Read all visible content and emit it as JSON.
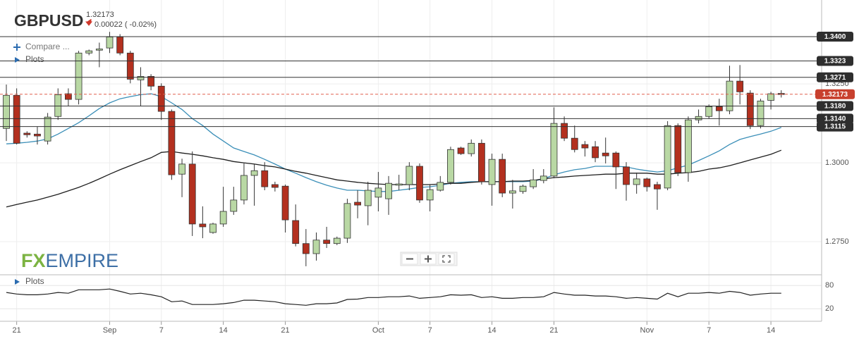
{
  "chart_data": [
    {
      "type": "candlestick",
      "title": "GBPUSD",
      "last_price": {
        "value": 1.32173,
        "label": "1.32173"
      },
      "change": "0.00022 ( -0.02%)",
      "categories": [
        null,
        "21",
        null,
        null,
        null,
        null,
        null,
        null,
        null,
        null,
        "Sep",
        null,
        null,
        null,
        null,
        "7",
        null,
        null,
        null,
        null,
        null,
        "14",
        null,
        null,
        null,
        null,
        null,
        "21",
        null,
        null,
        null,
        null,
        null,
        null,
        null,
        null,
        "Oct",
        null,
        null,
        null,
        null,
        "7",
        null,
        null,
        null,
        null,
        null,
        "14",
        null,
        null,
        null,
        null,
        null,
        "21",
        null,
        null,
        null,
        null,
        null,
        null,
        null,
        null,
        "Nov",
        null,
        null,
        null,
        null,
        null,
        "7",
        null,
        null,
        null,
        null,
        null,
        "14",
        null
      ],
      "ohlc": [
        [
          1.3109,
          1.3248,
          1.3069,
          1.3214
        ],
        [
          1.3214,
          1.3236,
          1.3058,
          1.3062
        ],
        [
          1.3094,
          1.31,
          1.308,
          1.3089
        ],
        [
          1.3091,
          1.3114,
          1.3058,
          1.3085
        ],
        [
          1.3069,
          1.3158,
          1.3058,
          1.3145
        ],
        [
          1.3147,
          1.3236,
          1.3136,
          1.3216
        ],
        [
          1.3219,
          1.3236,
          1.3181,
          1.3201
        ],
        [
          1.3201,
          1.3355,
          1.3185,
          1.3348
        ],
        [
          1.3348,
          1.3359,
          1.3341,
          1.3355
        ],
        [
          1.3357,
          1.3381,
          1.3303,
          1.3361
        ],
        [
          1.3364,
          1.3415,
          1.3348,
          1.3399
        ],
        [
          1.3399,
          1.3408,
          1.3341,
          1.3348
        ],
        [
          1.3348,
          1.3355,
          1.3252,
          1.3265
        ],
        [
          1.3263,
          1.3303,
          1.3181,
          1.3274
        ],
        [
          1.3274,
          1.3281,
          1.323,
          1.3243
        ],
        [
          1.3243,
          1.3252,
          1.3136,
          1.3163
        ],
        [
          1.3163,
          1.3169,
          1.2946,
          1.2962
        ],
        [
          1.2964,
          1.3013,
          1.2891,
          1.2996
        ],
        [
          1.2996,
          1.3036,
          1.2768,
          1.2806
        ],
        [
          1.2806,
          1.2862,
          1.2761,
          1.2797
        ],
        [
          1.2779,
          1.281,
          1.2775,
          1.2806
        ],
        [
          1.2806,
          1.2924,
          1.2797,
          1.2846
        ],
        [
          1.2846,
          1.2924,
          1.2835,
          1.2882
        ],
        [
          1.2882,
          1.2998,
          1.2868,
          1.296
        ],
        [
          1.296,
          1.2996,
          1.2864,
          1.2975
        ],
        [
          1.2975,
          1.3002,
          1.2913,
          1.2924
        ],
        [
          1.2931,
          1.294,
          1.2909,
          1.2922
        ],
        [
          1.2926,
          1.2931,
          1.2779,
          1.2819
        ],
        [
          1.2817,
          1.2868,
          1.2735,
          1.2744
        ],
        [
          1.2744,
          1.279,
          1.2672,
          1.2712
        ],
        [
          1.2712,
          1.2779,
          1.269,
          1.2755
        ],
        [
          1.2755,
          1.2797,
          1.273,
          1.2744
        ],
        [
          1.2744,
          1.2766,
          1.2739,
          1.2761
        ],
        [
          1.2761,
          1.2886,
          1.2746,
          1.2871
        ],
        [
          1.2875,
          1.2913,
          1.2824,
          1.2866
        ],
        [
          1.2864,
          1.294,
          1.2802,
          1.2913
        ],
        [
          1.2891,
          1.2971,
          1.2846,
          1.292
        ],
        [
          1.2886,
          1.2958,
          1.2835,
          1.2935
        ],
        [
          1.2929,
          1.2962,
          1.2913,
          1.2933
        ],
        [
          1.2931,
          1.3002,
          1.2913,
          1.2989
        ],
        [
          1.2989,
          1.2998,
          1.2873,
          1.2882
        ],
        [
          1.2882,
          1.2931,
          1.2846,
          1.2915
        ],
        [
          1.2913,
          1.2958,
          1.2909,
          1.2938
        ],
        [
          1.2938,
          1.3051,
          1.2931,
          1.3042
        ],
        [
          1.3047,
          1.3051,
          1.3025,
          1.3029
        ],
        [
          1.3029,
          1.3074,
          1.302,
          1.3062
        ],
        [
          1.3062,
          1.3074,
          1.2931,
          1.294
        ],
        [
          1.2931,
          1.3029,
          1.2864,
          1.3011
        ],
        [
          1.3011,
          1.3029,
          1.2891,
          1.2904
        ],
        [
          1.2904,
          1.2946,
          1.2855,
          1.2911
        ],
        [
          1.2909,
          1.2931,
          1.2902,
          1.2926
        ],
        [
          1.2924,
          1.298,
          1.2917,
          1.2946
        ],
        [
          1.2944,
          1.298,
          1.2935,
          1.2958
        ],
        [
          1.2958,
          1.3176,
          1.2951,
          1.3125
        ],
        [
          1.3125,
          1.3147,
          1.3069,
          1.3078
        ],
        [
          1.3078,
          1.3118,
          1.3033,
          1.3042
        ],
        [
          1.3058,
          1.3069,
          1.302,
          1.3047
        ],
        [
          1.3051,
          1.3069,
          1.3002,
          1.3016
        ],
        [
          1.3031,
          1.308,
          1.2998,
          1.3022
        ],
        [
          1.3031,
          1.3036,
          1.2917,
          1.2987
        ],
        [
          1.2987,
          1.3002,
          1.288,
          1.2931
        ],
        [
          1.2931,
          1.2969,
          1.2902,
          1.2949
        ],
        [
          1.2949,
          1.2953,
          1.2909,
          1.2924
        ],
        [
          1.2931,
          1.294,
          1.2851,
          1.2917
        ],
        [
          1.292,
          1.3132,
          1.2913,
          1.3118
        ],
        [
          1.3118,
          1.3125,
          1.2958,
          1.2969
        ],
        [
          1.2969,
          1.3147,
          1.294,
          1.3136
        ],
        [
          1.3136,
          1.3169,
          1.3125,
          1.3147
        ],
        [
          1.3147,
          1.3185,
          1.314,
          1.3178
        ],
        [
          1.3178,
          1.3203,
          1.3118,
          1.3165
        ],
        [
          1.3165,
          1.3308,
          1.3154,
          1.3259
        ],
        [
          1.3259,
          1.331,
          1.3185,
          1.3225
        ],
        [
          1.3221,
          1.323,
          1.3107,
          1.3118
        ],
        [
          1.3118,
          1.3203,
          1.3109,
          1.3196
        ],
        [
          1.3198,
          1.3225,
          1.3169,
          1.3219
        ],
        [
          1.322,
          1.323,
          1.3207,
          1.32173
        ]
      ],
      "up_color": "#b9d8a4",
      "down_color": "#b3301f",
      "overlays": [
        {
          "color": "#3b8fb8",
          "values": [
            1.306,
            1.3062,
            1.3065,
            1.3069,
            1.3076,
            1.3091,
            1.3109,
            1.3127,
            1.3149,
            1.3172,
            1.319,
            1.3203,
            1.321,
            1.3216,
            1.3219,
            1.321,
            1.319,
            1.3169,
            1.314,
            1.3118,
            1.3091,
            1.3069,
            1.3047,
            1.3036,
            1.3025,
            1.3011,
            1.2996,
            1.298,
            1.2967,
            1.2953,
            1.294,
            1.2929,
            1.292,
            1.2913,
            1.2913,
            1.2911,
            1.2909,
            1.2909,
            1.2913,
            1.2917,
            1.2922,
            1.2924,
            1.2929,
            1.2935,
            1.2938,
            1.294,
            1.294,
            1.294,
            1.294,
            1.294,
            1.294,
            1.2942,
            1.2949,
            1.2962,
            1.2971,
            1.2978,
            1.2982,
            1.2989,
            1.2989,
            1.2989,
            1.2987,
            1.298,
            1.2975,
            1.2971,
            1.2975,
            1.2984,
            1.2993,
            1.3007,
            1.3022,
            1.3038,
            1.3058,
            1.3074,
            1.3083,
            1.3091,
            1.31,
            1.3112
          ]
        },
        {
          "color": "#1e1e1e",
          "values": [
            1.286,
            1.2868,
            1.2875,
            1.2882,
            1.2891,
            1.29,
            1.2911,
            1.2922,
            1.2935,
            1.2949,
            1.2964,
            1.2978,
            1.2991,
            1.3004,
            1.3016,
            1.3033,
            1.3036,
            1.3031,
            1.3027,
            1.3022,
            1.3016,
            1.3011,
            1.3004,
            1.3,
            1.2996,
            1.2991,
            1.2987,
            1.298,
            1.2973,
            1.2967,
            1.296,
            1.2953,
            1.2946,
            1.2942,
            1.2938,
            1.2935,
            1.2933,
            1.2931,
            1.2931,
            1.2931,
            1.2931,
            1.2931,
            1.2933,
            1.2935,
            1.2935,
            1.2938,
            1.294,
            1.294,
            1.294,
            1.2942,
            1.2942,
            1.2944,
            1.2949,
            1.2953,
            1.2955,
            1.2958,
            1.296,
            1.2962,
            1.2964,
            1.2964,
            1.2967,
            1.2967,
            1.2967,
            1.2964,
            1.2964,
            1.2967,
            1.2969,
            1.2973,
            1.298,
            1.2984,
            1.2991,
            1.3,
            1.3009,
            1.3018,
            1.3027,
            1.304
          ]
        }
      ],
      "levels": [
        {
          "value": 1.34,
          "label": "1.3400"
        },
        {
          "value": 1.3323,
          "label": "1.3323"
        },
        {
          "value": 1.3271,
          "label": "1.3271"
        },
        {
          "value": 1.318,
          "label": "1.3180"
        },
        {
          "value": 1.314,
          "label": "1.3140"
        },
        {
          "value": 1.3115,
          "label": "1.3115"
        }
      ],
      "ylim": [
        1.2645,
        1.3505
      ],
      "yticks": [
        {
          "value": 1.275,
          "label": "1.2750"
        },
        {
          "value": 1.3,
          "label": "1.3000"
        },
        {
          "value": 1.325,
          "label": "1.3250"
        }
      ],
      "grid": true
    },
    {
      "type": "line",
      "title": "Plots",
      "color": "#222222",
      "values": [
        62,
        58,
        56,
        56,
        58,
        62,
        60,
        69,
        69,
        69,
        71,
        65,
        58,
        60,
        56,
        51,
        38,
        40,
        31,
        31,
        31,
        33,
        36,
        42,
        42,
        40,
        38,
        33,
        31,
        29,
        33,
        33,
        35,
        44,
        45,
        49,
        49,
        51,
        51,
        53,
        47,
        49,
        51,
        56,
        55,
        56,
        49,
        51,
        47,
        47,
        49,
        49,
        51,
        62,
        58,
        55,
        55,
        53,
        53,
        51,
        47,
        49,
        47,
        45,
        60,
        51,
        60,
        60,
        62,
        60,
        65,
        62,
        55,
        58,
        60,
        60
      ],
      "ylim": [
        -5,
        104
      ],
      "yticks": [
        20,
        80
      ],
      "grid": true
    }
  ],
  "ui": {
    "compare": "Compare ...",
    "plots": "Plots",
    "logo_fx": "FX",
    "logo_rest": "EMPIRE"
  }
}
